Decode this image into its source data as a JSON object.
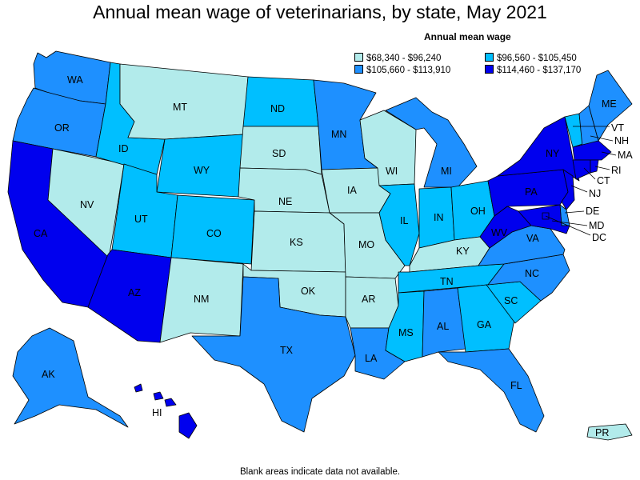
{
  "title": "Annual mean wage of veterinarians, by state, May 2021",
  "legend": {
    "title": "Annual mean wage",
    "items": [
      {
        "label": "$68,340 - $96,240",
        "color": "#b2ebeb"
      },
      {
        "label": "$96,560 - $105,450",
        "color": "#00bfff"
      },
      {
        "label": "$105,660 - $113,910",
        "color": "#1e90ff"
      },
      {
        "label": "$114,460 - $137,170",
        "color": "#0000ee"
      }
    ]
  },
  "footnote": "Blank areas indicate data not available.",
  "states": {
    "WA": {
      "label": "WA",
      "tier": 2
    },
    "OR": {
      "label": "OR",
      "tier": 2
    },
    "CA": {
      "label": "CA",
      "tier": 3
    },
    "NV": {
      "label": "NV",
      "tier": 0
    },
    "ID": {
      "label": "ID",
      "tier": 1
    },
    "MT": {
      "label": "MT",
      "tier": 0
    },
    "WY": {
      "label": "WY",
      "tier": 1
    },
    "UT": {
      "label": "UT",
      "tier": 1
    },
    "AZ": {
      "label": "AZ",
      "tier": 3
    },
    "CO": {
      "label": "CO",
      "tier": 1
    },
    "NM": {
      "label": "NM",
      "tier": 0
    },
    "ND": {
      "label": "ND",
      "tier": 1
    },
    "SD": {
      "label": "SD",
      "tier": 0
    },
    "NE": {
      "label": "NE",
      "tier": 0
    },
    "KS": {
      "label": "KS",
      "tier": 0
    },
    "OK": {
      "label": "OK",
      "tier": 0
    },
    "TX": {
      "label": "TX",
      "tier": 2
    },
    "MN": {
      "label": "MN",
      "tier": 2
    },
    "IA": {
      "label": "IA",
      "tier": 0
    },
    "MO": {
      "label": "MO",
      "tier": 0
    },
    "AR": {
      "label": "AR",
      "tier": 0
    },
    "LA": {
      "label": "LA",
      "tier": 2
    },
    "WI": {
      "label": "WI",
      "tier": 0
    },
    "IL": {
      "label": "IL",
      "tier": 1
    },
    "MI": {
      "label": "MI",
      "tier": 2
    },
    "IN": {
      "label": "IN",
      "tier": 1
    },
    "OH": {
      "label": "OH",
      "tier": 1
    },
    "KY": {
      "label": "KY",
      "tier": 0
    },
    "TN": {
      "label": "TN",
      "tier": 1
    },
    "MS": {
      "label": "MS",
      "tier": 1
    },
    "AL": {
      "label": "AL",
      "tier": 2
    },
    "GA": {
      "label": "GA",
      "tier": 1
    },
    "FL": {
      "label": "FL",
      "tier": 2
    },
    "SC": {
      "label": "SC",
      "tier": 1
    },
    "NC": {
      "label": "NC",
      "tier": 2
    },
    "VA": {
      "label": "VA",
      "tier": 2
    },
    "WV": {
      "label": "WV",
      "tier": 3
    },
    "PA": {
      "label": "PA",
      "tier": 3
    },
    "NY": {
      "label": "NY",
      "tier": 3
    },
    "ME": {
      "label": "ME",
      "tier": 2
    },
    "VT": {
      "label": "VT",
      "tier": 1
    },
    "NH": {
      "label": "NH",
      "tier": 2
    },
    "MA": {
      "label": "MA",
      "tier": 3
    },
    "RI": {
      "label": "RI",
      "tier": 3
    },
    "CT": {
      "label": "CT",
      "tier": 3
    },
    "NJ": {
      "label": "NJ",
      "tier": 3
    },
    "DE": {
      "label": "DE",
      "tier": 2
    },
    "MD": {
      "label": "MD",
      "tier": 3
    },
    "DC": {
      "label": "DC",
      "tier": 3
    },
    "AK": {
      "label": "AK",
      "tier": 2
    },
    "HI": {
      "label": "HI",
      "tier": 3
    },
    "PR": {
      "label": "PR",
      "tier": 0
    }
  }
}
